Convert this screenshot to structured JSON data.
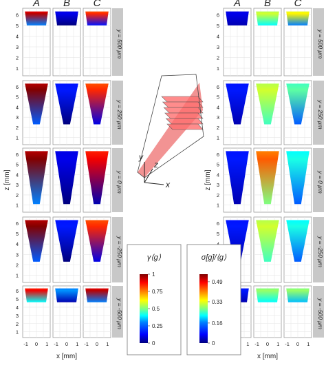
{
  "chart_data": [
    {
      "type": "heatmap",
      "panel": "left",
      "columns": [
        {
          "label": "A",
          "color": "#1a8f1a"
        },
        {
          "label": "B",
          "color": "#cc1f1f"
        },
        {
          "label": "C",
          "color": "#1f3fcc"
        }
      ],
      "rows": [
        {
          "label": "y = 500 μm",
          "y_um": 500,
          "z_range_mm": [
            5.0,
            6.3
          ]
        },
        {
          "label": "y = 250 μm",
          "y_um": 250,
          "z_range_mm": [
            2.3,
            6.3
          ]
        },
        {
          "label": "y = 0 μm",
          "y_um": 0,
          "z_range_mm": [
            1.1,
            6.3
          ]
        },
        {
          "label": "y = -250 μm",
          "y_um": -250,
          "z_range_mm": [
            2.3,
            6.3
          ]
        },
        {
          "label": "y = -500 μm",
          "y_um": -500,
          "z_range_mm": [
            4.6,
            6.3
          ]
        }
      ],
      "xlabel": "x [mm]",
      "ylabel": "z [mm]",
      "xticks": [
        "-1",
        "0",
        "1"
      ],
      "yticks": [
        "1",
        "2",
        "3",
        "4",
        "5",
        "6"
      ],
      "xlim": [
        -1.3,
        1.3
      ],
      "ylim": [
        0.3,
        6.6
      ],
      "colorbar": {
        "label": "γ⟨g⟩",
        "range": [
          0,
          1
        ],
        "ticks": [
          "1",
          "0.75",
          "0.5",
          "0.25",
          "0"
        ]
      },
      "grid": true
    },
    {
      "type": "heatmap",
      "panel": "right",
      "columns": [
        {
          "label": "A",
          "color": "#1a8f1a"
        },
        {
          "label": "B",
          "color": "#cc1f1f"
        },
        {
          "label": "C",
          "color": "#1f3fcc"
        }
      ],
      "rows": [
        {
          "label": "y = 500 μm",
          "y_um": 500
        },
        {
          "label": "y = 250 μm",
          "y_um": 250
        },
        {
          "label": "y = 0 μm",
          "y_um": 0
        },
        {
          "label": "y = -250 μm",
          "y_um": -250
        },
        {
          "label": "y = -500 μm",
          "y_um": -500
        }
      ],
      "xlabel": "x [mm]",
      "ylabel": "z [mm]",
      "xticks": [
        "-1",
        "0",
        "1"
      ],
      "yticks": [
        "1",
        "2",
        "3",
        "4",
        "5",
        "6"
      ],
      "colorbar": {
        "label": "σ[g]/⟨g⟩",
        "range": [
          0,
          0.55
        ],
        "ticks": [
          "0.49",
          "0.33",
          "0.16",
          "0"
        ]
      },
      "grid": true
    }
  ],
  "inset": {
    "axis_labels": {
      "y": "y",
      "z": "z",
      "x": "x"
    }
  },
  "colors": {
    "strip_bg": "#c8c8c8",
    "panel_border": "#9a9a9a",
    "grid": "#e6e6e6",
    "jet": [
      "#00007f",
      "#0000ff",
      "#0080ff",
      "#00ffff",
      "#80ff80",
      "#ffff00",
      "#ff8000",
      "#ff0000",
      "#7f0000"
    ]
  }
}
